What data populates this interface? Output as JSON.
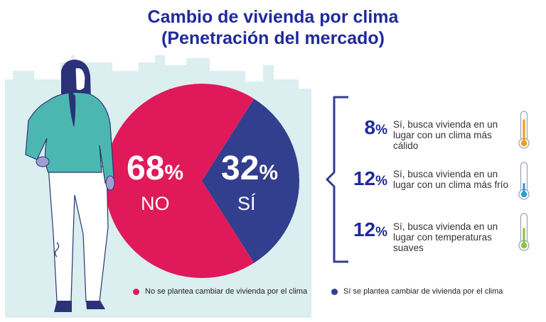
{
  "title_line1": "Cambio de vivienda por clima",
  "title_line2": "(Penetración del mercado)",
  "colors": {
    "no": "#e0195a",
    "si": "#323e8e",
    "title": "#1f2a9c",
    "background_shape": "#dbeef0",
    "warm": "#f39c1f",
    "cold": "#2b9fd4",
    "mild": "#8cc63f"
  },
  "chart_data": {
    "type": "pie",
    "categories": [
      "NO",
      "SÍ"
    ],
    "values": [
      68,
      32
    ],
    "unit": "%",
    "labels": {
      "no_value": "68",
      "si_value": "32",
      "percent_symbol": "%",
      "no_label": "NO",
      "si_label": "SÍ"
    },
    "legend": [
      {
        "label": "No se plantea cambiar de vivienda por el clima",
        "color": "#e0195a"
      },
      {
        "label": "Sí se plantea cambiar de vivienda por el clima",
        "color": "#323e8e"
      }
    ],
    "legend_position": "bottom",
    "breakdown": [
      {
        "value": "8",
        "symbol": "%",
        "text": "Sí, busca vivienda en un lugar con un clima más cálido",
        "icon": "thermometer-warm-icon"
      },
      {
        "value": "12",
        "symbol": "%",
        "text": "Sí, busca vivienda en un lugar con un clima más frío",
        "icon": "thermometer-cold-icon"
      },
      {
        "value": "12",
        "symbol": "%",
        "text": "Sí, busca vivienda en un lugar con temperaturas suaves",
        "icon": "thermometer-mild-icon"
      }
    ]
  }
}
